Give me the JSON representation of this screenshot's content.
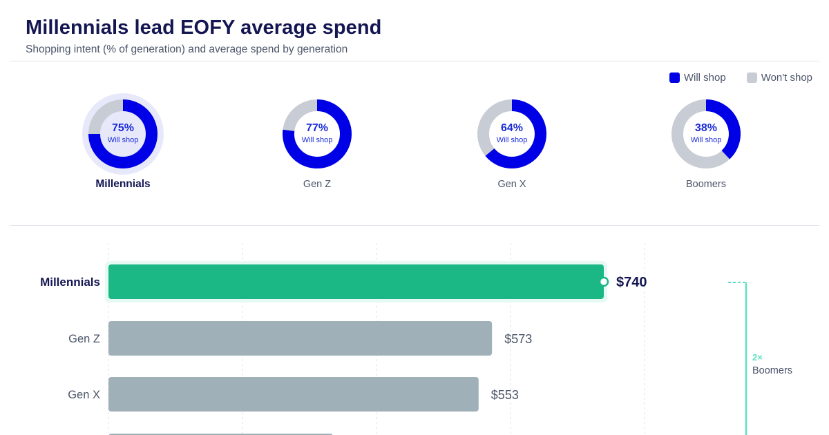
{
  "header": {
    "title": "Millennials lead EOFY average spend",
    "subtitle": "Shopping intent (% of generation) and average spend by generation"
  },
  "colors": {
    "will_shop": "#0000e6",
    "wont_shop": "#c8ccd4",
    "highlight_bar": "#1bb886",
    "other_bar": "#a0b0b9",
    "accent_line": "#5de0c4",
    "ring_highlight": "#e7e9fb"
  },
  "legend": {
    "will_shop": "Will shop",
    "wont_shop": "Won't shop"
  },
  "chart_data": [
    {
      "type": "pie",
      "variant": "donut",
      "categories": [
        "Millennials",
        "Gen Z",
        "Gen X",
        "Boomers"
      ],
      "center_label": "Will shop",
      "series": [
        {
          "name": "Will shop",
          "values": [
            75,
            77,
            64,
            38
          ]
        },
        {
          "name": "Won't shop",
          "values": [
            25,
            23,
            36,
            62
          ]
        }
      ],
      "highlight": "Millennials",
      "legend_position": "top-right"
    },
    {
      "type": "bar",
      "orientation": "horizontal",
      "categories": [
        "Millennials",
        "Gen Z",
        "Gen X"
      ],
      "values": [
        740,
        573,
        553
      ],
      "value_labels": [
        "$740",
        "$573",
        "$553"
      ],
      "highlight": "Millennials",
      "xlim": [
        0,
        1000
      ],
      "grid": true,
      "annotation": {
        "multiplier": "2×",
        "label": "Boomers"
      }
    }
  ]
}
